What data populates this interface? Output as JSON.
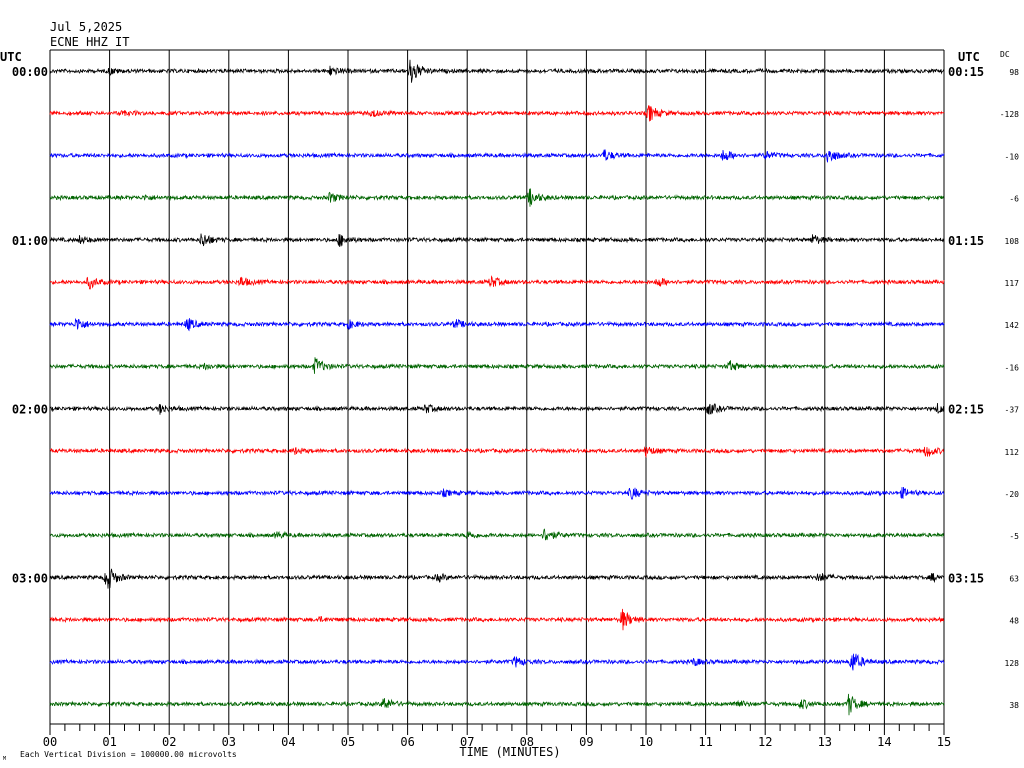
{
  "header": {
    "date": "Jul 5,2025",
    "station": "ECNE HHZ IT",
    "utc_left": "UTC",
    "utc_right": "UTC",
    "dc_label": "DC"
  },
  "footer": {
    "scale_note": "Each Vertical Division = 100000.00 microvolts",
    "corner_mark": "M"
  },
  "colors": {
    "trace_cycle": [
      "#000000",
      "#ff0000",
      "#0000ff",
      "#006400"
    ],
    "grid": "#000000",
    "background": "#ffffff"
  },
  "chart_data": {
    "type": "line",
    "title": "",
    "xlabel": "TIME (MINUTES)",
    "ylabel": "",
    "xlim": [
      0,
      15
    ],
    "x_ticks": [
      "00",
      "01",
      "02",
      "03",
      "04",
      "05",
      "06",
      "07",
      "08",
      "09",
      "10",
      "11",
      "12",
      "13",
      "14",
      "15"
    ],
    "grid": true,
    "rows": [
      {
        "left_time": "00:00",
        "right_time": "00:15",
        "dc": "98"
      },
      {
        "left_time": "",
        "right_time": "",
        "dc": "-128"
      },
      {
        "left_time": "",
        "right_time": "",
        "dc": "-10"
      },
      {
        "left_time": "",
        "right_time": "",
        "dc": "-6"
      },
      {
        "left_time": "01:00",
        "right_time": "01:15",
        "dc": "108"
      },
      {
        "left_time": "",
        "right_time": "",
        "dc": "117"
      },
      {
        "left_time": "",
        "right_time": "",
        "dc": "142"
      },
      {
        "left_time": "",
        "right_time": "",
        "dc": "-16"
      },
      {
        "left_time": "02:00",
        "right_time": "02:15",
        "dc": "-37"
      },
      {
        "left_time": "",
        "right_time": "",
        "dc": "112"
      },
      {
        "left_time": "",
        "right_time": "",
        "dc": "-20"
      },
      {
        "left_time": "",
        "right_time": "",
        "dc": "-5"
      },
      {
        "left_time": "03:00",
        "right_time": "03:15",
        "dc": "63"
      },
      {
        "left_time": "",
        "right_time": "",
        "dc": "48"
      },
      {
        "left_time": "",
        "right_time": "",
        "dc": "128"
      },
      {
        "left_time": "",
        "right_time": "",
        "dc": "38"
      }
    ],
    "bursts": [
      [
        {
          "t": 6.05,
          "a": 1.0
        },
        {
          "t": 4.7,
          "a": 0.3
        },
        {
          "t": 1.0,
          "a": 0.2
        }
      ],
      [
        {
          "t": 10.05,
          "a": 0.6
        },
        {
          "t": 5.4,
          "a": 0.25
        },
        {
          "t": 1.2,
          "a": 0.15
        }
      ],
      [
        {
          "t": 13.05,
          "a": 0.6
        },
        {
          "t": 11.3,
          "a": 0.45
        },
        {
          "t": 9.3,
          "a": 0.4
        },
        {
          "t": 12.0,
          "a": 0.25
        }
      ],
      [
        {
          "t": 8.05,
          "a": 0.6
        },
        {
          "t": 4.7,
          "a": 0.35
        },
        {
          "t": 1.6,
          "a": 0.15
        }
      ],
      [
        {
          "t": 2.55,
          "a": 0.55
        },
        {
          "t": 4.85,
          "a": 0.45
        },
        {
          "t": 12.8,
          "a": 0.35
        },
        {
          "t": 0.5,
          "a": 0.25
        }
      ],
      [
        {
          "t": 0.65,
          "a": 0.45
        },
        {
          "t": 7.4,
          "a": 0.4
        },
        {
          "t": 10.2,
          "a": 0.35
        },
        {
          "t": 3.2,
          "a": 0.35
        }
      ],
      [
        {
          "t": 0.45,
          "a": 0.5
        },
        {
          "t": 2.3,
          "a": 0.45
        },
        {
          "t": 5.0,
          "a": 0.3
        },
        {
          "t": 6.8,
          "a": 0.3
        }
      ],
      [
        {
          "t": 4.45,
          "a": 0.6
        },
        {
          "t": 11.4,
          "a": 0.35
        },
        {
          "t": 2.6,
          "a": 0.2
        }
      ],
      [
        {
          "t": 11.05,
          "a": 0.45
        },
        {
          "t": 1.85,
          "a": 0.35
        },
        {
          "t": 6.3,
          "a": 0.3
        },
        {
          "t": 14.9,
          "a": 0.35
        }
      ],
      [
        {
          "t": 14.7,
          "a": 0.45
        },
        {
          "t": 10.0,
          "a": 0.35
        },
        {
          "t": 4.1,
          "a": 0.2
        }
      ],
      [
        {
          "t": 9.75,
          "a": 0.45
        },
        {
          "t": 14.3,
          "a": 0.35
        },
        {
          "t": 6.6,
          "a": 0.2
        }
      ],
      [
        {
          "t": 8.3,
          "a": 0.5
        },
        {
          "t": 7.0,
          "a": 0.25
        },
        {
          "t": 3.8,
          "a": 0.2
        }
      ],
      [
        {
          "t": 0.95,
          "a": 1.0
        },
        {
          "t": 12.9,
          "a": 0.35
        },
        {
          "t": 6.5,
          "a": 0.25
        },
        {
          "t": 14.8,
          "a": 0.25
        }
      ],
      [
        {
          "t": 9.6,
          "a": 0.75
        },
        {
          "t": 4.5,
          "a": 0.15
        }
      ],
      [
        {
          "t": 13.45,
          "a": 0.85
        },
        {
          "t": 7.8,
          "a": 0.35
        },
        {
          "t": 10.8,
          "a": 0.25
        }
      ],
      [
        {
          "t": 13.4,
          "a": 0.75
        },
        {
          "t": 5.6,
          "a": 0.45
        },
        {
          "t": 12.6,
          "a": 0.35
        },
        {
          "t": 11.5,
          "a": 0.3
        }
      ]
    ]
  }
}
